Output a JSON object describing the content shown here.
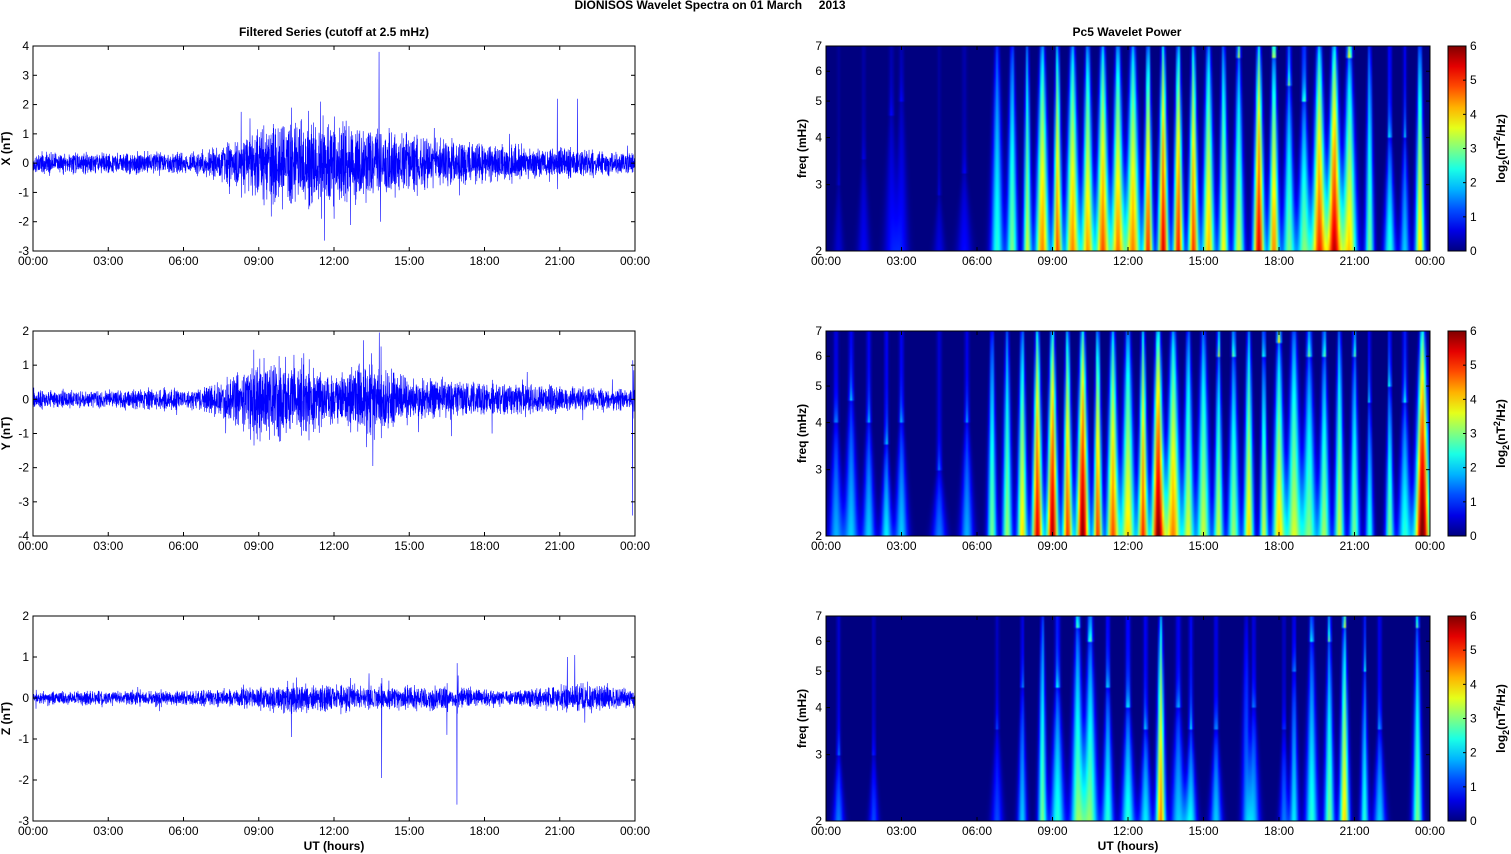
{
  "figure": {
    "suptitle": "DIONISOS Wavelet Spectra on 01 March     2013",
    "left_title": "Filtered Series (cutoff at 2.5 mHz)",
    "right_title": "Pc5 Wavelet Power"
  },
  "chart_data": [
    {
      "type": "line",
      "id": "x-series",
      "ylabel": "X (nT)",
      "xlabel": "",
      "ylim": [
        -3,
        4
      ],
      "yticks": [
        -3,
        -2,
        -1,
        0,
        1,
        2,
        3,
        4
      ],
      "xlim": [
        0,
        24
      ],
      "xtick_labels": [
        "00:00",
        "03:00",
        "06:00",
        "09:00",
        "12:00",
        "15:00",
        "18:00",
        "21:00",
        "00:00"
      ],
      "line_color": "#0000ff",
      "envelope": [
        [
          0,
          0.35
        ],
        [
          6.5,
          0.35
        ],
        [
          8,
          0.8
        ],
        [
          9,
          1.2
        ],
        [
          10.5,
          1.3
        ],
        [
          12,
          1.4
        ],
        [
          13,
          1.2
        ],
        [
          14,
          1.1
        ],
        [
          16,
          0.8
        ],
        [
          18,
          0.6
        ],
        [
          20,
          0.5
        ],
        [
          22,
          0.45
        ],
        [
          24,
          0.35
        ]
      ],
      "spikes": [
        [
          8.3,
          1.75
        ],
        [
          9.7,
          -1.1
        ],
        [
          10.7,
          1.5
        ],
        [
          11.5,
          -1.9
        ],
        [
          12,
          -1.9
        ],
        [
          13.8,
          3.8
        ],
        [
          13.85,
          -2.0
        ],
        [
          14.2,
          1.2
        ],
        [
          16,
          1.2
        ],
        [
          17,
          -1.1
        ],
        [
          19,
          1.0
        ],
        [
          20.9,
          2.2
        ],
        [
          21.7,
          2.2
        ],
        [
          23.7,
          0.6
        ]
      ]
    },
    {
      "type": "line",
      "id": "y-series",
      "ylabel": "Y (nT)",
      "xlabel": "",
      "ylim": [
        -4,
        2
      ],
      "yticks": [
        -4,
        -3,
        -2,
        -1,
        0,
        1,
        2
      ],
      "xlim": [
        0,
        24
      ],
      "xtick_labels": [
        "00:00",
        "03:00",
        "06:00",
        "09:00",
        "12:00",
        "15:00",
        "18:00",
        "21:00",
        "00:00"
      ],
      "line_color": "#0000ff",
      "envelope": [
        [
          0,
          0.25
        ],
        [
          6.5,
          0.3
        ],
        [
          8,
          0.7
        ],
        [
          9,
          1.1
        ],
        [
          10.5,
          1.0
        ],
        [
          12,
          0.6
        ],
        [
          13.5,
          1.0
        ],
        [
          15,
          0.6
        ],
        [
          17,
          0.5
        ],
        [
          20,
          0.4
        ],
        [
          22,
          0.35
        ],
        [
          24,
          0.3
        ]
      ],
      "spikes": [
        [
          8.8,
          1.45
        ],
        [
          8.9,
          -1.0
        ],
        [
          10.4,
          1.3
        ],
        [
          11,
          -1.2
        ],
        [
          13.3,
          -1.4
        ],
        [
          13.5,
          1.35
        ],
        [
          13.55,
          -1.95
        ],
        [
          14.3,
          0.9
        ],
        [
          18.3,
          -1.0
        ],
        [
          19.7,
          0.8
        ],
        [
          23.9,
          -3.4
        ],
        [
          23.95,
          0.85
        ]
      ]
    },
    {
      "type": "line",
      "id": "z-series",
      "ylabel": "Z (nT)",
      "xlabel": "UT (hours)",
      "ylim": [
        -3,
        2
      ],
      "yticks": [
        -3,
        -2,
        -1,
        0,
        1,
        2
      ],
      "xlim": [
        0,
        24
      ],
      "xtick_labels": [
        "00:00",
        "03:00",
        "06:00",
        "09:00",
        "12:00",
        "15:00",
        "18:00",
        "21:00",
        "00:00"
      ],
      "line_color": "#0000ff",
      "envelope": [
        [
          0,
          0.15
        ],
        [
          8,
          0.2
        ],
        [
          10,
          0.35
        ],
        [
          12,
          0.3
        ],
        [
          14,
          0.25
        ],
        [
          16,
          0.3
        ],
        [
          18,
          0.2
        ],
        [
          20,
          0.2
        ],
        [
          21,
          0.3
        ],
        [
          22,
          0.35
        ],
        [
          24,
          0.2
        ]
      ],
      "spikes": [
        [
          10.3,
          -0.95
        ],
        [
          10.5,
          0.5
        ],
        [
          13.4,
          0.6
        ],
        [
          13.9,
          -1.95
        ],
        [
          16.5,
          -0.9
        ],
        [
          16.9,
          -2.6
        ],
        [
          16.95,
          0.55
        ],
        [
          21.3,
          1.0
        ],
        [
          21.6,
          1.05
        ],
        [
          22,
          -0.6
        ],
        [
          24,
          1.05
        ]
      ]
    },
    {
      "type": "heatmap",
      "id": "x-wavelet",
      "ylabel": "freq (mHz)",
      "xlabel": "",
      "yscale": "log",
      "ylim": [
        2,
        7
      ],
      "yticks": [
        2,
        3,
        4,
        5,
        6,
        7
      ],
      "xlim": [
        0,
        24
      ],
      "xtick_labels": [
        "00:00",
        "03:00",
        "06:00",
        "09:00",
        "12:00",
        "15:00",
        "18:00",
        "21:00",
        "00:00"
      ],
      "colorbar": {
        "label_main": "log",
        "label_sub": "2",
        "label_unit_a": "(nT",
        "label_sup": "2",
        "label_unit_b": "/Hz)",
        "range": [
          0,
          6
        ],
        "ticks": [
          0,
          1,
          2,
          3,
          4,
          5,
          6
        ],
        "colormap": "jet"
      },
      "events": [
        [
          0.5,
          0.5,
          3.0
        ],
        [
          1.5,
          0.7,
          3.5
        ],
        [
          2.6,
          0.8,
          4.6
        ],
        [
          3.0,
          0.8,
          5.0
        ],
        [
          4.5,
          0.6,
          2.8
        ],
        [
          5.5,
          0.8,
          3.2
        ],
        [
          6.8,
          2.5,
          7.0
        ],
        [
          7.4,
          3.0,
          7.0
        ],
        [
          8.0,
          3.5,
          7.0
        ],
        [
          8.6,
          4.5,
          7.0
        ],
        [
          9.2,
          4.8,
          7.0
        ],
        [
          9.8,
          4.5,
          7.0
        ],
        [
          10.4,
          4.3,
          7.0
        ],
        [
          11.0,
          4.8,
          7.0
        ],
        [
          11.6,
          4.5,
          7.0
        ],
        [
          12.2,
          4.5,
          7.0
        ],
        [
          12.8,
          5.0,
          7.0
        ],
        [
          13.4,
          5.5,
          7.0
        ],
        [
          14.0,
          5.2,
          7.0
        ],
        [
          14.6,
          5.0,
          7.0
        ],
        [
          15.2,
          4.2,
          7.0
        ],
        [
          15.8,
          3.8,
          7.0
        ],
        [
          16.4,
          3.5,
          6.5
        ],
        [
          17.2,
          5.5,
          7.0
        ],
        [
          17.8,
          4.5,
          6.5
        ],
        [
          18.4,
          3.0,
          5.5
        ],
        [
          19.0,
          3.0,
          5.0
        ],
        [
          19.6,
          5.0,
          7.0
        ],
        [
          20.2,
          5.5,
          7.0
        ],
        [
          20.8,
          4.0,
          6.5
        ],
        [
          21.6,
          3.0,
          7.0
        ],
        [
          22.4,
          2.5,
          4.0
        ],
        [
          23.0,
          2.0,
          4.0
        ],
        [
          23.6,
          4.0,
          7.0
        ]
      ]
    },
    {
      "type": "heatmap",
      "id": "y-wavelet",
      "ylabel": "freq (mHz)",
      "xlabel": "",
      "yscale": "log",
      "ylim": [
        2,
        7
      ],
      "yticks": [
        2,
        3,
        4,
        5,
        6,
        7
      ],
      "xlim": [
        0,
        24
      ],
      "xtick_labels": [
        "00:00",
        "03:00",
        "06:00",
        "09:00",
        "12:00",
        "15:00",
        "18:00",
        "21:00",
        "00:00"
      ],
      "colorbar": {
        "label_main": "log",
        "label_sub": "2",
        "label_unit_a": "(nT",
        "label_sup": "2",
        "label_unit_b": "/Hz)",
        "range": [
          0,
          6
        ],
        "ticks": [
          0,
          1,
          2,
          3,
          4,
          5,
          6
        ],
        "colormap": "jet"
      },
      "events": [
        [
          0.4,
          1.8,
          4.0
        ],
        [
          1.0,
          2.0,
          4.6
        ],
        [
          1.7,
          2.0,
          4.0
        ],
        [
          2.4,
          2.2,
          3.5
        ],
        [
          3.0,
          2.0,
          4.0
        ],
        [
          4.5,
          1.5,
          3.0
        ],
        [
          5.6,
          1.8,
          4.0
        ],
        [
          6.6,
          3.0,
          7.0
        ],
        [
          7.2,
          3.2,
          7.0
        ],
        [
          7.8,
          4.0,
          7.0
        ],
        [
          8.4,
          5.5,
          7.0
        ],
        [
          9.0,
          5.8,
          7.0
        ],
        [
          9.6,
          5.0,
          7.0
        ],
        [
          10.2,
          6.0,
          7.0
        ],
        [
          10.8,
          5.0,
          7.0
        ],
        [
          11.4,
          4.8,
          7.0
        ],
        [
          12.0,
          4.0,
          7.0
        ],
        [
          12.6,
          5.0,
          7.0
        ],
        [
          13.2,
          6.0,
          7.0
        ],
        [
          13.8,
          4.5,
          7.0
        ],
        [
          14.4,
          3.5,
          7.0
        ],
        [
          15.0,
          3.5,
          7.0
        ],
        [
          15.6,
          3.5,
          6.0
        ],
        [
          16.2,
          3.2,
          6.0
        ],
        [
          16.8,
          4.0,
          7.0
        ],
        [
          17.4,
          3.5,
          6.0
        ],
        [
          18.0,
          4.0,
          6.5
        ],
        [
          18.6,
          3.5,
          7.0
        ],
        [
          19.2,
          3.0,
          6.0
        ],
        [
          19.8,
          3.2,
          6.0
        ],
        [
          20.4,
          3.5,
          7.0
        ],
        [
          21.0,
          3.0,
          6.0
        ],
        [
          21.6,
          2.5,
          4.5
        ],
        [
          22.4,
          3.0,
          5.0
        ],
        [
          23.0,
          2.5,
          4.5
        ],
        [
          23.7,
          6.2,
          7.0
        ]
      ]
    },
    {
      "type": "heatmap",
      "id": "z-wavelet",
      "ylabel": "freq (mHz)",
      "xlabel": "UT (hours)",
      "yscale": "log",
      "ylim": [
        2,
        7
      ],
      "yticks": [
        2,
        3,
        4,
        5,
        6,
        7
      ],
      "xlim": [
        0,
        24
      ],
      "xtick_labels": [
        "00:00",
        "03:00",
        "06:00",
        "09:00",
        "12:00",
        "15:00",
        "18:00",
        "21:00",
        "00:00"
      ],
      "colorbar": {
        "label_main": "log",
        "label_sub": "2",
        "label_unit_a": "(nT",
        "label_sup": "2",
        "label_unit_b": "/Hz)",
        "range": [
          0,
          6
        ],
        "ticks": [
          0,
          1,
          2,
          3,
          4,
          5,
          6
        ],
        "colormap": "jet"
      },
      "events": [
        [
          0.5,
          1.5,
          3.0
        ],
        [
          1.9,
          1.2,
          3.0
        ],
        [
          6.8,
          1.2,
          3.5
        ],
        [
          7.8,
          2.0,
          4.5
        ],
        [
          8.6,
          3.0,
          7.0
        ],
        [
          9.2,
          2.5,
          4.5
        ],
        [
          10.0,
          3.0,
          6.5
        ],
        [
          10.5,
          3.0,
          6.0
        ],
        [
          11.2,
          2.5,
          4.5
        ],
        [
          12.0,
          2.5,
          4.0
        ],
        [
          12.7,
          2.2,
          3.5
        ],
        [
          13.3,
          4.5,
          7.0
        ],
        [
          14.0,
          2.0,
          4.0
        ],
        [
          14.5,
          2.2,
          3.5
        ],
        [
          15.5,
          2.0,
          3.5
        ],
        [
          16.7,
          1.5,
          7.0
        ],
        [
          17.0,
          1.8,
          4.0
        ],
        [
          18.2,
          1.5,
          3.5
        ],
        [
          18.6,
          2.2,
          5.0
        ],
        [
          19.3,
          2.5,
          6.0
        ],
        [
          20.0,
          3.0,
          6.0
        ],
        [
          20.6,
          4.0,
          6.5
        ],
        [
          21.4,
          2.5,
          5.0
        ],
        [
          22.0,
          2.0,
          3.5
        ],
        [
          23.5,
          3.0,
          6.5
        ]
      ]
    }
  ]
}
